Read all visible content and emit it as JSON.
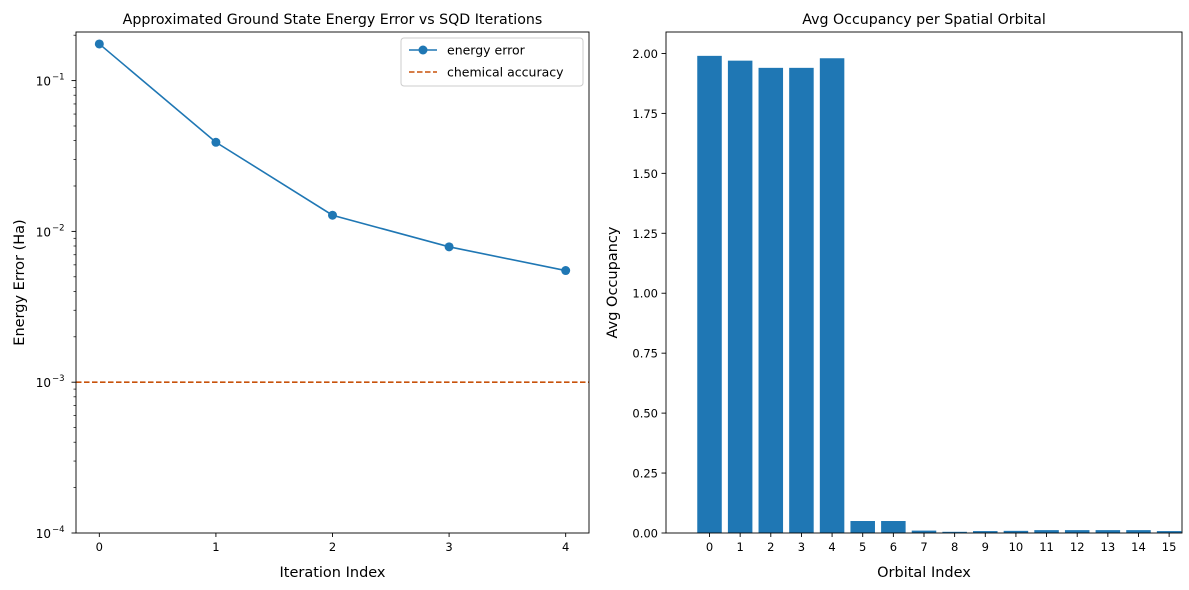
{
  "chart_data": [
    {
      "type": "line",
      "title": "Approximated Ground State Energy Error vs SQD Iterations",
      "xlabel": "Iteration Index",
      "ylabel": "Energy Error (Ha)",
      "yscale": "log",
      "x": [
        0,
        1,
        2,
        3,
        4
      ],
      "xticks": [
        "0",
        "1",
        "2",
        "3",
        "4"
      ],
      "xlim": [
        -0.2,
        4.2
      ],
      "ylim": [
        0.0001,
        0.21
      ],
      "yticks": [
        {
          "value": 0.0001,
          "base": "10",
          "exp": "−4"
        },
        {
          "value": 0.001,
          "base": "10",
          "exp": "−3"
        },
        {
          "value": 0.01,
          "base": "10",
          "exp": "−2"
        },
        {
          "value": 0.1,
          "base": "10",
          "exp": "−1"
        }
      ],
      "series": [
        {
          "name": "energy error",
          "values": [
            0.175,
            0.039,
            0.0128,
            0.0079,
            0.0055
          ],
          "color": "#1f77b4"
        }
      ],
      "hline": {
        "name": "chemical accuracy",
        "value": 0.001,
        "color": "#c8520a",
        "style": "dashed"
      },
      "legend": [
        "energy error",
        "chemical accuracy"
      ],
      "legend_position": "upper-right"
    },
    {
      "type": "bar",
      "title": "Avg Occupancy per Spatial Orbital",
      "xlabel": "Orbital Index",
      "ylabel": "Avg Occupancy",
      "categories": [
        "0",
        "1",
        "2",
        "3",
        "4",
        "5",
        "6",
        "7",
        "8",
        "9",
        "10",
        "11",
        "12",
        "13",
        "14",
        "15"
      ],
      "values": [
        1.99,
        1.97,
        1.94,
        1.94,
        1.98,
        0.05,
        0.05,
        0.01,
        0.005,
        0.008,
        0.009,
        0.012,
        0.012,
        0.012,
        0.012,
        0.008
      ],
      "ylim": [
        0,
        2.0895
      ],
      "yticks": [
        "0.00",
        "0.25",
        "0.50",
        "0.75",
        "1.00",
        "1.25",
        "1.50",
        "1.75",
        "2.00"
      ],
      "color": "#1f77b4"
    }
  ]
}
